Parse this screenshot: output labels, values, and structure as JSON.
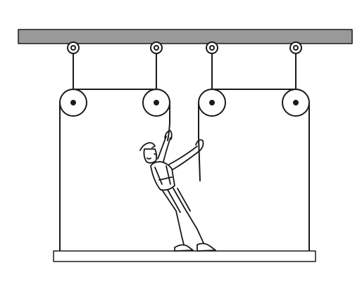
{
  "diagram": {
    "subject": "person-pulling-rope-on-pulley-system",
    "components": {
      "ceiling_beam": "ceiling-beam",
      "pulleys": [
        {
          "id": "pulley-left-outer",
          "mount": "hook-left-outer"
        },
        {
          "id": "pulley-left-inner",
          "mount": "hook-left-inner"
        },
        {
          "id": "pulley-right-inner",
          "mount": "hook-right-inner"
        },
        {
          "id": "pulley-right-outer",
          "mount": "hook-right-outer"
        }
      ],
      "platform": "hanging-platform",
      "figure": "worker-in-overalls"
    },
    "colors": {
      "beam_fill": "#999999",
      "line": "#1a1a1a",
      "background": "#ffffff"
    }
  }
}
